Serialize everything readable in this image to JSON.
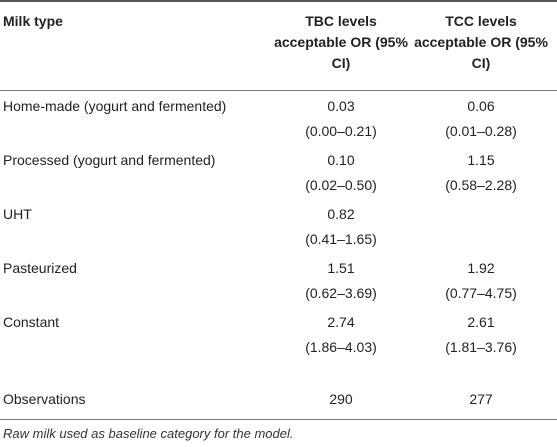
{
  "columns": {
    "milk_type": "Milk type",
    "tbc": "TBC levels acceptable OR (95% CI)",
    "tcc": "TCC levels acceptable OR (95% CI)"
  },
  "rows": [
    {
      "label": "Home-made (yogurt and fermented)",
      "tbc_or": "0.03",
      "tbc_ci": "(0.00–0.21)",
      "tcc_or": "0.06",
      "tcc_ci": "(0.01–0.28)"
    },
    {
      "label": "Processed (yogurt and fermented)",
      "tbc_or": "0.10",
      "tbc_ci": "(0.02–0.50)",
      "tcc_or": "1.15",
      "tcc_ci": "(0.58–2.28)"
    },
    {
      "label": "UHT",
      "tbc_or": "0.82",
      "tbc_ci": "(0.41–1.65)",
      "tcc_or": "",
      "tcc_ci": ""
    },
    {
      "label": "Pasteurized",
      "tbc_or": "1.51",
      "tbc_ci": "(0.62–3.69)",
      "tcc_or": "1.92",
      "tcc_ci": "(0.77–4.75)"
    },
    {
      "label": "Constant",
      "tbc_or": "2.74",
      "tbc_ci": "(1.86–4.03)",
      "tcc_or": "2.61",
      "tcc_ci": "(1.81–3.76)"
    }
  ],
  "observations": {
    "label": "Observations",
    "tbc": "290",
    "tcc": "277"
  },
  "footnote": "Raw milk used as baseline category for the model."
}
